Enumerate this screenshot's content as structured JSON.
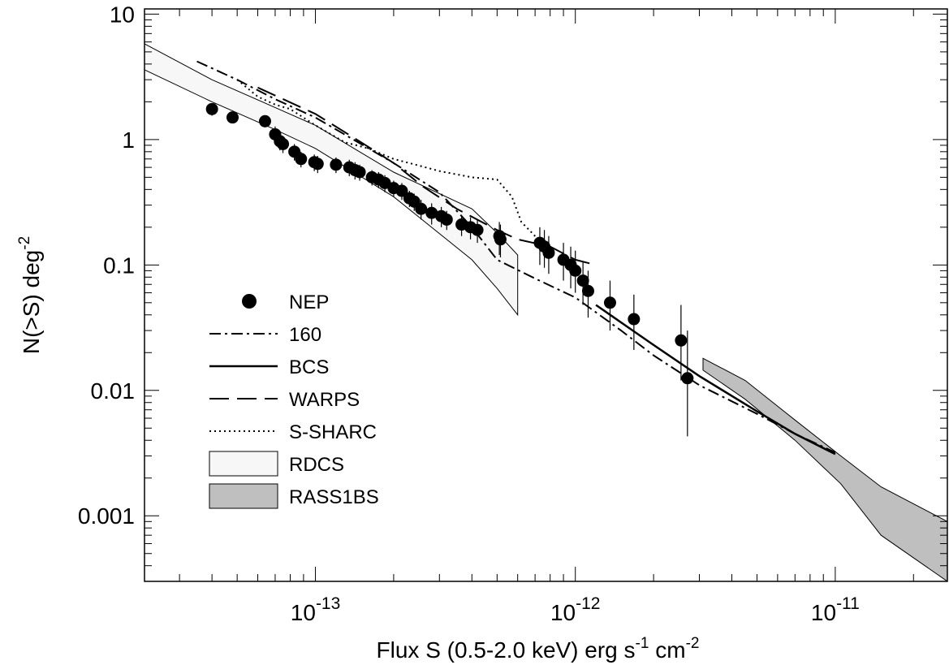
{
  "chart_data": {
    "type": "line",
    "title": "",
    "xlabel": {
      "main": "Flux S (0.5-2.0 keV) erg s",
      "sup1": "-1",
      "mid": " cm",
      "sup2": "-2"
    },
    "ylabel": {
      "main": "N(>S) deg",
      "sup": "-2"
    },
    "x_scale": "log",
    "y_scale": "log",
    "xlim": [
      2.2e-14,
      2.7e-11
    ],
    "ylim": [
      0.0003,
      11
    ],
    "x_ticks": [
      {
        "value": 1e-13,
        "base": "10",
        "exp": "-13"
      },
      {
        "value": 1e-12,
        "base": "10",
        "exp": "-12"
      },
      {
        "value": 1e-11,
        "base": "10",
        "exp": "-11"
      }
    ],
    "y_ticks": [
      {
        "value": 10,
        "label": "10"
      },
      {
        "value": 1,
        "label": "1"
      },
      {
        "value": 0.1,
        "label": "0.1"
      },
      {
        "value": 0.01,
        "label": "0.01"
      },
      {
        "value": 0.001,
        "label": "0.001"
      }
    ],
    "legend_position": "left",
    "legend": [
      {
        "label": "NEP",
        "style": "marker"
      },
      {
        "label": "160",
        "style": "dashdot"
      },
      {
        "label": "BCS",
        "style": "solid"
      },
      {
        "label": "WARPS",
        "style": "longdash"
      },
      {
        "label": "S-SHARC",
        "style": "dotted"
      },
      {
        "label": "RDCS",
        "style": "box-light"
      },
      {
        "label": "RASS1BS",
        "style": "box-gray"
      }
    ],
    "series": [
      {
        "name": "NEP",
        "kind": "points",
        "x": [
          4e-14,
          4.8e-14,
          6.4e-14,
          7e-14,
          7.3e-14,
          7.5e-14,
          8.3e-14,
          8.8e-14,
          9.9e-14,
          1.02e-13,
          1.2e-13,
          1.35e-13,
          1.42e-13,
          1.48e-13,
          1.65e-13,
          1.75e-13,
          1.85e-13,
          2e-13,
          2.15e-13,
          2.3e-13,
          2.4e-13,
          2.55e-13,
          2.8e-13,
          3.05e-13,
          3.2e-13,
          3.65e-13,
          3.95e-13,
          4.2e-13,
          5.1e-13,
          5.15e-13,
          7.3e-13,
          7.6e-13,
          7.9e-13,
          9e-13,
          9.6e-13,
          1e-12,
          1.07e-12,
          1.12e-12,
          1.36e-12,
          1.68e-12,
          2.55e-12,
          2.7e-12
        ],
        "y": [
          1.75,
          1.5,
          1.4,
          1.1,
          0.97,
          0.92,
          0.8,
          0.7,
          0.66,
          0.64,
          0.63,
          0.6,
          0.57,
          0.55,
          0.5,
          0.48,
          0.45,
          0.41,
          0.39,
          0.34,
          0.32,
          0.28,
          0.26,
          0.245,
          0.23,
          0.21,
          0.2,
          0.19,
          0.17,
          0.16,
          0.15,
          0.14,
          0.125,
          0.11,
          0.1,
          0.09,
          0.075,
          0.062,
          0.05,
          0.037,
          0.025,
          0.0125
        ],
        "y_lo": [
          1.55,
          1.35,
          1.25,
          0.93,
          0.82,
          0.78,
          0.68,
          0.6,
          0.56,
          0.54,
          0.54,
          0.51,
          0.48,
          0.47,
          0.43,
          0.41,
          0.38,
          0.35,
          0.33,
          0.29,
          0.27,
          0.23,
          0.21,
          0.2,
          0.19,
          0.17,
          0.16,
          0.15,
          0.12,
          0.115,
          0.1,
          0.095,
          0.085,
          0.075,
          0.065,
          0.06,
          0.048,
          0.038,
          0.03,
          0.021,
          0.012,
          0.0043
        ],
        "y_hi": [
          1.95,
          1.65,
          1.55,
          1.27,
          1.12,
          1.06,
          0.92,
          0.8,
          0.76,
          0.74,
          0.72,
          0.69,
          0.66,
          0.63,
          0.57,
          0.55,
          0.52,
          0.47,
          0.45,
          0.39,
          0.37,
          0.33,
          0.31,
          0.29,
          0.27,
          0.25,
          0.24,
          0.23,
          0.22,
          0.21,
          0.2,
          0.19,
          0.17,
          0.15,
          0.14,
          0.13,
          0.105,
          0.09,
          0.075,
          0.058,
          0.048,
          0.03
        ]
      },
      {
        "name": "160",
        "kind": "line",
        "style": "dashdot",
        "x": [
          3.5e-14,
          5e-14,
          7e-14,
          1e-13,
          1.4e-13,
          2e-13,
          3e-13,
          4e-13,
          5e-13,
          7e-13,
          1e-12,
          1.5e-12,
          2e-12,
          3e-12,
          5e-12,
          7e-12,
          1e-11
        ],
        "y": [
          4.2,
          3.0,
          2.1,
          1.5,
          1.0,
          0.65,
          0.38,
          0.2,
          0.11,
          0.078,
          0.055,
          0.03,
          0.019,
          0.011,
          0.0065,
          0.0045,
          0.0032
        ]
      },
      {
        "name": "BCS",
        "kind": "line",
        "style": "solid",
        "x": [
          1.2e-12,
          2e-12,
          3e-12,
          5e-12,
          7e-12,
          1e-11
        ],
        "y": [
          0.048,
          0.023,
          0.013,
          0.0068,
          0.0045,
          0.0031
        ]
      },
      {
        "name": "WARPS",
        "kind": "line",
        "style": "longdash",
        "x": [
          6e-14,
          1e-13,
          1.5e-13,
          2e-13,
          2.6e-13,
          3.5e-13,
          5e-13,
          6e-13,
          8e-13,
          1e-12,
          1.2e-12
        ],
        "y": [
          2.6,
          1.6,
          0.95,
          0.65,
          0.42,
          0.28,
          0.19,
          0.16,
          0.14,
          0.11,
          0.1
        ]
      },
      {
        "name": "S-SHARC",
        "kind": "line",
        "style": "dotted",
        "x": [
          5e-14,
          6e-14,
          7e-14,
          8e-14,
          1e-13,
          1.3e-13,
          1.6e-13,
          2e-13,
          2.5e-13,
          3e-13,
          4e-13,
          5e-13,
          5.7e-13,
          6.2e-13,
          7e-13,
          8e-13
        ],
        "y": [
          3.0,
          2.2,
          1.9,
          1.75,
          1.3,
          0.95,
          0.85,
          0.7,
          0.62,
          0.56,
          0.5,
          0.48,
          0.35,
          0.22,
          0.17,
          0.14
        ]
      },
      {
        "name": "RDCS",
        "kind": "band",
        "style": "box-light",
        "x": [
          2.2e-14,
          4e-14,
          7e-14,
          1e-13,
          2e-13,
          4e-13,
          5e-13,
          6e-13
        ],
        "y_lo": [
          3.6,
          2.0,
          1.2,
          0.85,
          0.35,
          0.11,
          0.065,
          0.04
        ],
        "y_hi": [
          5.8,
          3.0,
          1.8,
          1.3,
          0.55,
          0.28,
          0.18,
          0.12
        ]
      },
      {
        "name": "RASS1BS",
        "kind": "band",
        "style": "box-gray",
        "x": [
          3.1e-12,
          4.5e-12,
          7e-12,
          1.05e-11,
          1.5e-11,
          2.7e-11
        ],
        "y_lo": [
          0.0145,
          0.0085,
          0.004,
          0.0018,
          0.0007,
          0.0003
        ],
        "y_hi": [
          0.018,
          0.012,
          0.0058,
          0.003,
          0.0017,
          0.0009
        ]
      }
    ]
  },
  "colors": {
    "foreground": "#000000",
    "rdcs_fill": "#f7f7f7",
    "rass_fill": "#bfbfbf",
    "background": "#ffffff"
  }
}
